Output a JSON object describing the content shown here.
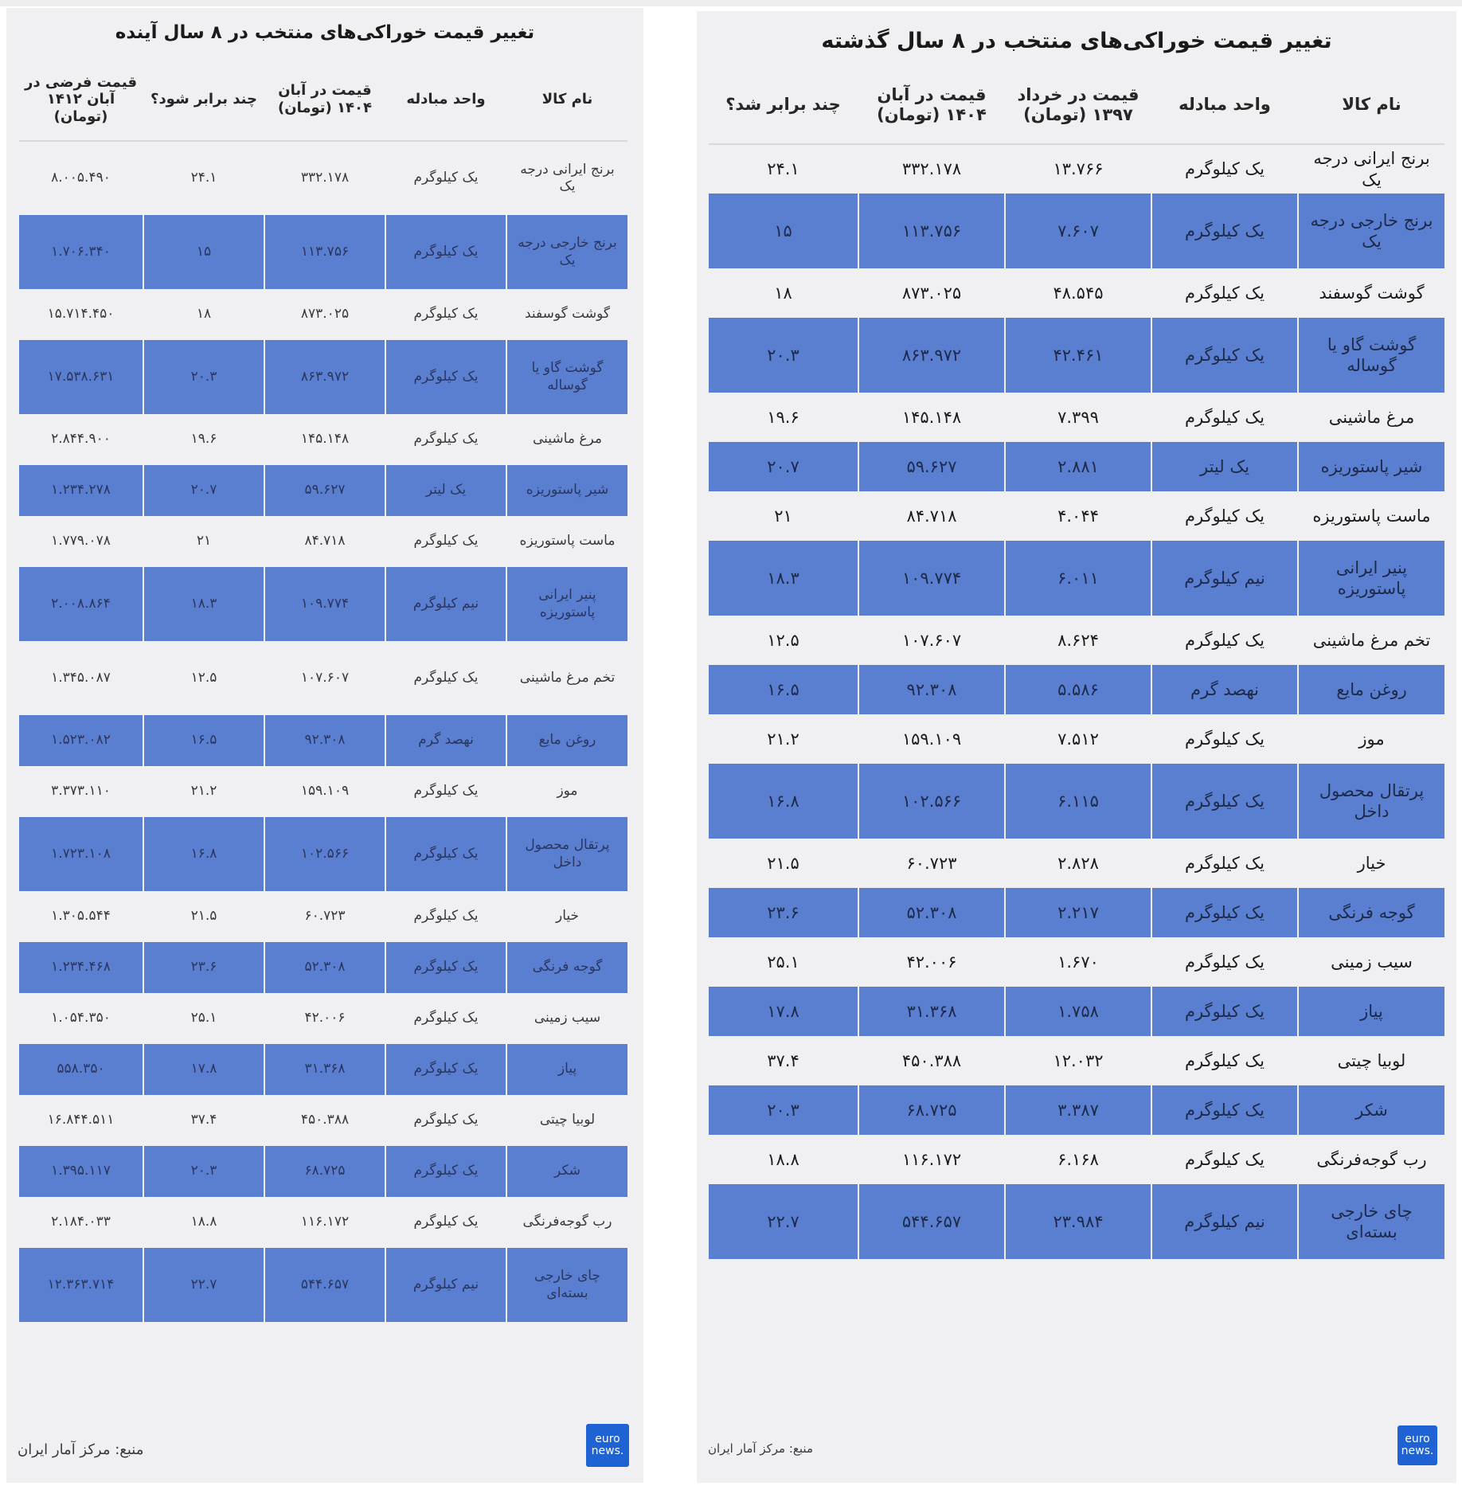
{
  "chart_data": [
    {
      "type": "table",
      "title": "تغییر قیمت خوراکی‌های منتخب در ۸ سال گذشته",
      "columns": [
        "نام کالا",
        "واحد مبادله",
        "قیمت در خرداد ۱۳۹۷ (تومان)",
        "قیمت در آبان ۱۴۰۴ (تومان)",
        "چند برابر شد؟"
      ],
      "rows": [
        [
          "برنج ایرانی درجه یک",
          "یک کیلوگرم",
          "۱۳.۷۶۶",
          "۳۳۲.۱۷۸",
          "۲۴.۱"
        ],
        [
          "برنج خارجی درجه یک",
          "یک کیلوگرم",
          "۷.۶۰۷",
          "۱۱۳.۷۵۶",
          "۱۵"
        ],
        [
          "گوشت گوسفند",
          "یک کیلوگرم",
          "۴۸.۵۴۵",
          "۸۷۳.۰۲۵",
          "۱۸"
        ],
        [
          "گوشت گاو یا گوساله",
          "یک کیلوگرم",
          "۴۲.۴۶۱",
          "۸۶۳.۹۷۲",
          "۲۰.۳"
        ],
        [
          "مرغ ماشینی",
          "یک کیلوگرم",
          "۷.۳۹۹",
          "۱۴۵.۱۴۸",
          "۱۹.۶"
        ],
        [
          "شیر پاستوریزه",
          "یک لیتر",
          "۲.۸۸۱",
          "۵۹.۶۲۷",
          "۲۰.۷"
        ],
        [
          "ماست پاستوریزه",
          "یک کیلوگرم",
          "۴.۰۴۴",
          "۸۴.۷۱۸",
          "۲۱"
        ],
        [
          "پنیر ایرانی پاستوریزه",
          "نیم کیلوگرم",
          "۶.۰۱۱",
          "۱۰۹.۷۷۴",
          "۱۸.۳"
        ],
        [
          "تخم مرغ ماشینی",
          "یک کیلوگرم",
          "۸.۶۲۴",
          "۱۰۷.۶۰۷",
          "۱۲.۵"
        ],
        [
          "روغن مایع",
          "نهصد گرم",
          "۵.۵۸۶",
          "۹۲.۳۰۸",
          "۱۶.۵"
        ],
        [
          "موز",
          "یک کیلوگرم",
          "۷.۵۱۲",
          "۱۵۹.۱۰۹",
          "۲۱.۲"
        ],
        [
          "پرتقال محصول داخل",
          "یک کیلوگرم",
          "۶.۱۱۵",
          "۱۰۲.۵۶۶",
          "۱۶.۸"
        ],
        [
          "خیار",
          "یک کیلوگرم",
          "۲.۸۲۸",
          "۶۰.۷۲۳",
          "۲۱.۵"
        ],
        [
          "گوجه فرنگی",
          "یک کیلوگرم",
          "۲.۲۱۷",
          "۵۲.۳۰۸",
          "۲۳.۶"
        ],
        [
          "سیب زمینی",
          "یک کیلوگرم",
          "۱.۶۷۰",
          "۴۲.۰۰۶",
          "۲۵.۱"
        ],
        [
          "پیاز",
          "یک کیلوگرم",
          "۱.۷۵۸",
          "۳۱.۳۶۸",
          "۱۷.۸"
        ],
        [
          "لوبیا چیتی",
          "یک کیلوگرم",
          "۱۲.۰۳۲",
          "۴۵۰.۳۸۸",
          "۳۷.۴"
        ],
        [
          "شکر",
          "یک کیلوگرم",
          "۳.۳۸۷",
          "۶۸.۷۲۵",
          "۲۰.۳"
        ],
        [
          "رب گوجه‌فرنگی",
          "یک کیلوگرم",
          "۶.۱۶۸",
          "۱۱۶.۱۷۲",
          "۱۸.۸"
        ],
        [
          "چای خارجی بسته‌ای",
          "نیم کیلوگرم",
          "۲۳.۹۸۴",
          "۵۴۴.۶۵۷",
          "۲۲.۷"
        ]
      ],
      "source": "منبع: مرکز آمار ایران"
    },
    {
      "type": "table",
      "title": "تغییر قیمت خوراکی‌های منتخب در ۸ سال آینده",
      "columns": [
        "نام کالا",
        "واحد مبادله",
        "قیمت در آبان ۱۴۰۴ (تومان)",
        "چند برابر شود؟",
        "قیمت فرضی در آبان ۱۴۱۲ (تومان)"
      ],
      "rows": [
        [
          "برنج ایرانی درجه یک",
          "یک کیلوگرم",
          "۳۳۲.۱۷۸",
          "۲۴.۱",
          "۸.۰۰۵.۴۹۰"
        ],
        [
          "برنج خارجی درجه یک",
          "یک کیلوگرم",
          "۱۱۳.۷۵۶",
          "۱۵",
          "۱.۷۰۶.۳۴۰"
        ],
        [
          "گوشت گوسفند",
          "یک کیلوگرم",
          "۸۷۳.۰۲۵",
          "۱۸",
          "۱۵.۷۱۴.۴۵۰"
        ],
        [
          "گوشت گاو یا گوساله",
          "یک کیلوگرم",
          "۸۶۳.۹۷۲",
          "۲۰.۳",
          "۱۷.۵۳۸.۶۳۱"
        ],
        [
          "مرغ ماشینی",
          "یک کیلوگرم",
          "۱۴۵.۱۴۸",
          "۱۹.۶",
          "۲.۸۴۴.۹۰۰"
        ],
        [
          "شیر پاستوریزه",
          "یک لیتر",
          "۵۹.۶۲۷",
          "۲۰.۷",
          "۱.۲۳۴.۲۷۸"
        ],
        [
          "ماست پاستوریزه",
          "یک کیلوگرم",
          "۸۴.۷۱۸",
          "۲۱",
          "۱.۷۷۹.۰۷۸"
        ],
        [
          "پنیر ایرانی پاستوریزه",
          "نیم کیلوگرم",
          "۱۰۹.۷۷۴",
          "۱۸.۳",
          "۲.۰۰۸.۸۶۴"
        ],
        [
          "تخم مرغ ماشینی",
          "یک کیلوگرم",
          "۱۰۷.۶۰۷",
          "۱۲.۵",
          "۱.۳۴۵.۰۸۷"
        ],
        [
          "روغن مایع",
          "نهصد گرم",
          "۹۲.۳۰۸",
          "۱۶.۵",
          "۱.۵۲۳.۰۸۲"
        ],
        [
          "موز",
          "یک کیلوگرم",
          "۱۵۹.۱۰۹",
          "۲۱.۲",
          "۳.۳۷۳.۱۱۰"
        ],
        [
          "پرتقال محصول داخل",
          "یک کیلوگرم",
          "۱۰۲.۵۶۶",
          "۱۶.۸",
          "۱.۷۲۳.۱۰۸"
        ],
        [
          "خیار",
          "یک کیلوگرم",
          "۶۰.۷۲۳",
          "۲۱.۵",
          "۱.۳۰۵.۵۴۴"
        ],
        [
          "گوجه فرنگی",
          "یک کیلوگرم",
          "۵۲.۳۰۸",
          "۲۳.۶",
          "۱.۲۳۴.۴۶۸"
        ],
        [
          "سیب زمینی",
          "یک کیلوگرم",
          "۴۲.۰۰۶",
          "۲۵.۱",
          "۱.۰۵۴.۳۵۰"
        ],
        [
          "پیاز",
          "یک کیلوگرم",
          "۳۱.۳۶۸",
          "۱۷.۸",
          "۵۵۸.۳۵۰"
        ],
        [
          "لوبیا چیتی",
          "یک کیلوگرم",
          "۴۵۰.۳۸۸",
          "۳۷.۴",
          "۱۶.۸۴۴.۵۱۱"
        ],
        [
          "شکر",
          "یک کیلوگرم",
          "۶۸.۷۲۵",
          "۲۰.۳",
          "۱.۳۹۵.۱۱۷"
        ],
        [
          "رب گوجه‌فرنگی",
          "یک کیلوگرم",
          "۱۱۶.۱۷۲",
          "۱۸.۸",
          "۲.۱۸۴.۰۳۳"
        ],
        [
          "چای خارجی بسته‌ای",
          "نیم کیلوگرم",
          "۵۴۴.۶۵۷",
          "۲۲.۷",
          "۱۲.۳۶۳.۷۱۴"
        ]
      ],
      "source": "منبع: مرکز آمار ایران"
    }
  ],
  "logo": {
    "line1": "euro",
    "line2": "news."
  },
  "colors": {
    "stripe": "#5a7fd1",
    "panel": "#f0f0f2",
    "logo": "#1e62d4"
  }
}
